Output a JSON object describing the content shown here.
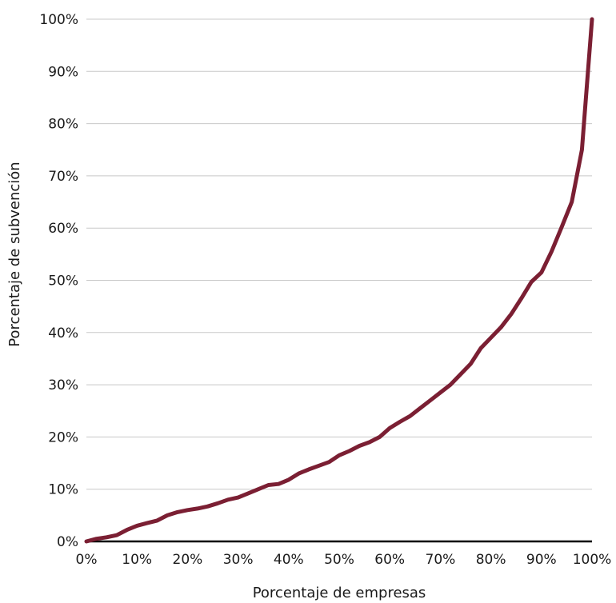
{
  "chart_data": {
    "type": "line",
    "title": "",
    "xlabel": "Porcentaje de empresas",
    "ylabel": "Porcentaje de subvención",
    "xlim": [
      0,
      100
    ],
    "ylim": [
      0,
      100
    ],
    "x_ticks": [
      "0%",
      "10%",
      "20%",
      "30%",
      "40%",
      "50%",
      "60%",
      "70%",
      "80%",
      "90%",
      "100%"
    ],
    "y_ticks": [
      "0%",
      "10%",
      "20%",
      "30%",
      "40%",
      "50%",
      "60%",
      "70%",
      "80%",
      "90%",
      "100%"
    ],
    "grid": true,
    "line_color": "#7b1f33",
    "series": [
      {
        "x": [
          0,
          2,
          4,
          6,
          8,
          10,
          12,
          14,
          16,
          18,
          20,
          22,
          24,
          26,
          28,
          30,
          32,
          34,
          36,
          38,
          40,
          42,
          44,
          46,
          48,
          50,
          52,
          54,
          56,
          58,
          60,
          62,
          64,
          66,
          68,
          70,
          72,
          74,
          76,
          78,
          80,
          82,
          84,
          86,
          88,
          90,
          92,
          94,
          96,
          98,
          100
        ],
        "y": [
          0,
          0.5,
          0.8,
          1.2,
          2.2,
          3,
          3.5,
          4,
          5,
          5.6,
          6,
          6.3,
          6.7,
          7.3,
          8,
          8.4,
          9.2,
          10,
          10.8,
          11,
          11.8,
          13,
          13.8,
          14.5,
          15.2,
          16.5,
          17.3,
          18.3,
          19,
          20,
          21.7,
          22.9,
          24,
          25.5,
          27,
          28.5,
          30,
          32,
          34,
          37,
          39,
          41,
          43.5,
          46.5,
          49.7,
          51.5,
          55.5,
          60.2,
          65,
          75,
          100
        ]
      }
    ]
  }
}
